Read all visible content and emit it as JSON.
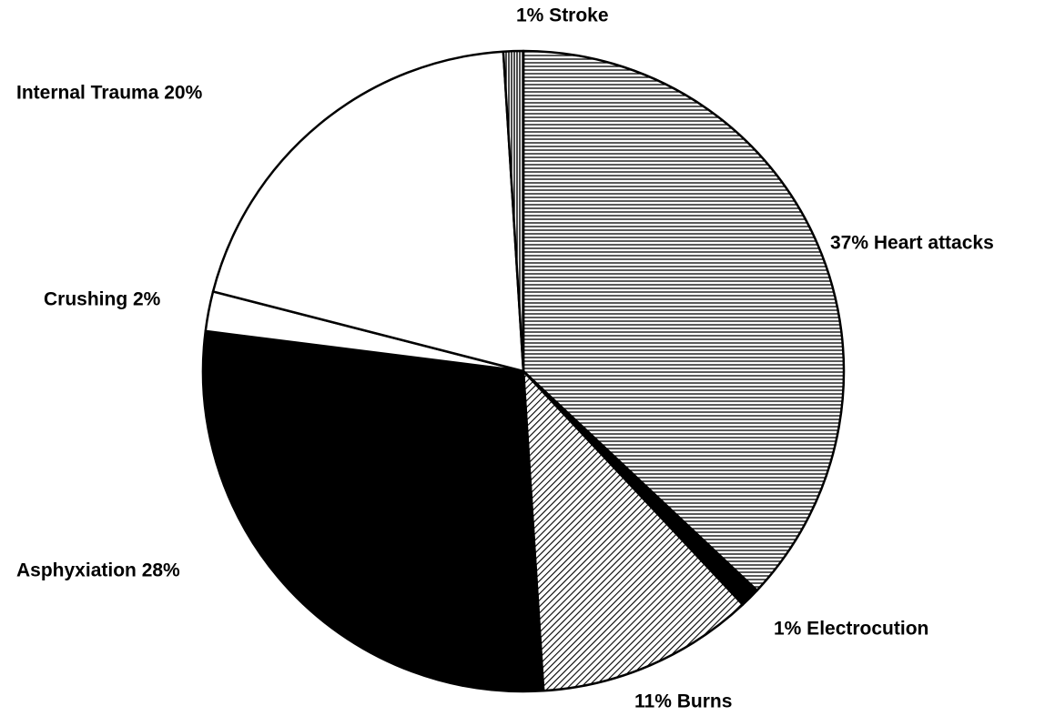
{
  "chart_data": {
    "type": "pie",
    "labels": [
      "37% Heart attacks",
      "1% Electrocution",
      "11% Burns",
      "Asphyxiation 28%",
      "Crushing 2%",
      "Internal Trauma 20%",
      "1% Stroke"
    ],
    "values": [
      37,
      1,
      11,
      28,
      2,
      20,
      1
    ],
    "colors": [
      "#000000",
      "#000000",
      "#000000",
      "#000000",
      "#ffffff",
      "#ffffff",
      "#000000"
    ],
    "hatch": [
      "horizontal",
      "solid",
      "diagonal",
      "solid",
      "none",
      "none",
      "vertical"
    ]
  }
}
